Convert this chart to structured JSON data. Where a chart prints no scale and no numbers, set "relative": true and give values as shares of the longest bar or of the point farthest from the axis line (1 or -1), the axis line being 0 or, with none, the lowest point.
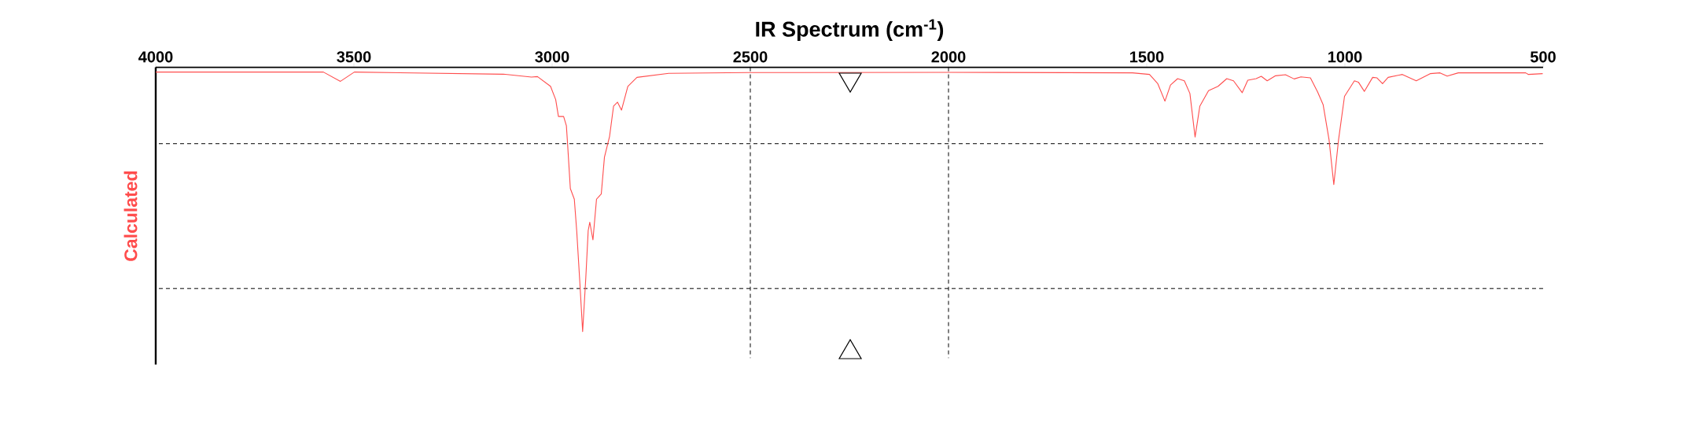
{
  "chart_data": {
    "type": "line",
    "title": "IR Spectrum (cm$^{-1}$)",
    "ylabel": "Calculated",
    "relative": true,
    "color": "#ff4d4d",
    "xlim": [
      4000,
      500
    ],
    "xticks": [
      4000,
      3500,
      3000,
      2500,
      2000,
      1500,
      1000,
      500
    ],
    "x": [
      4000,
      3577,
      3534,
      3499,
      3123,
      3052,
      3037,
      3004,
      2991,
      2984,
      2971,
      2964,
      2961,
      2954,
      2944,
      2938,
      2930,
      2923,
      2915,
      2909,
      2905,
      2897,
      2888,
      2876,
      2868,
      2855,
      2845,
      2835,
      2825,
      2809,
      2786,
      2706,
      2508,
      2000,
      1536,
      1493,
      1472,
      1454,
      1440,
      1422,
      1405,
      1391,
      1378,
      1366,
      1344,
      1320,
      1298,
      1281,
      1259,
      1245,
      1224,
      1211,
      1196,
      1175,
      1150,
      1128,
      1111,
      1087,
      1069,
      1055,
      1040,
      1028,
      1016,
      1001,
      976,
      966,
      951,
      930,
      919,
      905,
      891,
      855,
      820,
      785,
      760,
      742,
      714,
      544,
      537,
      501
    ],
    "values": [
      -0.018,
      -0.018,
      -0.053,
      -0.018,
      -0.026,
      -0.037,
      -0.035,
      -0.072,
      -0.122,
      -0.186,
      -0.186,
      -0.221,
      -0.29,
      -0.459,
      -0.499,
      -0.618,
      -0.816,
      -1,
      -0.796,
      -0.618,
      -0.586,
      -0.653,
      -0.499,
      -0.479,
      -0.34,
      -0.261,
      -0.147,
      -0.132,
      -0.162,
      -0.072,
      -0.038,
      -0.023,
      -0.02,
      -0.019,
      -0.021,
      -0.027,
      -0.062,
      -0.128,
      -0.067,
      -0.043,
      -0.051,
      -0.099,
      -0.264,
      -0.147,
      -0.088,
      -0.072,
      -0.043,
      -0.051,
      -0.096,
      -0.049,
      -0.043,
      -0.034,
      -0.051,
      -0.032,
      -0.028,
      -0.044,
      -0.036,
      -0.04,
      -0.093,
      -0.141,
      -0.274,
      -0.444,
      -0.274,
      -0.11,
      -0.051,
      -0.056,
      -0.091,
      -0.038,
      -0.04,
      -0.062,
      -0.038,
      -0.027,
      -0.051,
      -0.024,
      -0.021,
      -0.033,
      -0.021,
      -0.021,
      -0.027,
      -0.024
    ],
    "ref_lines": [
      {
        "axis": "y",
        "value": -0.289,
        "color": "#000000",
        "line_style": "dashed"
      },
      {
        "axis": "y",
        "value": -0.837,
        "color": "#000000",
        "line_style": "dashed"
      },
      {
        "axis": "x",
        "value": 2500,
        "color": "#000000",
        "line_style": "dashed"
      },
      {
        "axis": "x",
        "value": 2000,
        "color": "#000000",
        "line_style": "dashed"
      }
    ]
  }
}
